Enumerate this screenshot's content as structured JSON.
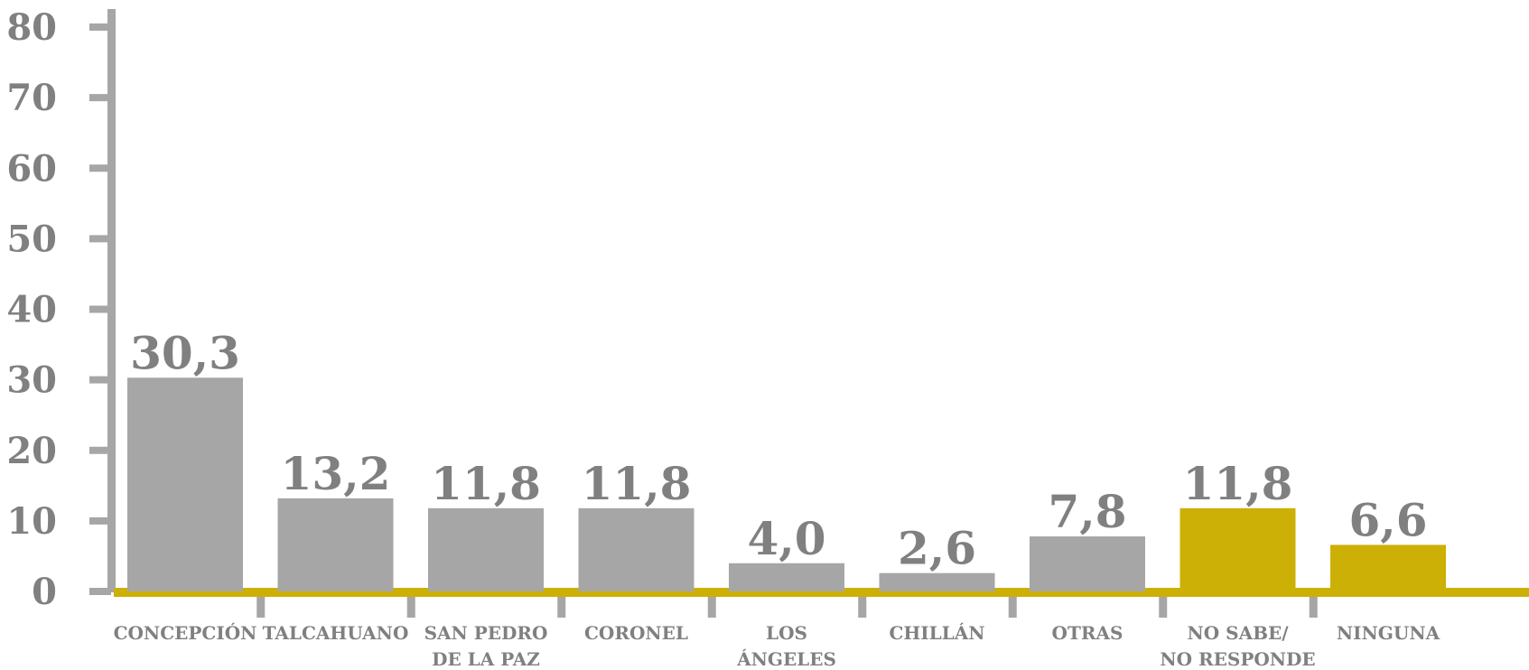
{
  "chart_data": {
    "type": "bar",
    "categories": [
      [
        "CONCEPCIÓN"
      ],
      [
        "TALCAHUANO"
      ],
      [
        "SAN PEDRO",
        "DE LA PAZ"
      ],
      [
        "CORONEL"
      ],
      [
        "LOS",
        "ÁNGELES"
      ],
      [
        "CHILLÁN"
      ],
      [
        "OTRAS"
      ],
      [
        "NO SABE/",
        "NO RESPONDE"
      ],
      [
        "NINGUNA"
      ]
    ],
    "values": [
      30.3,
      13.2,
      11.8,
      11.8,
      4.0,
      2.6,
      7.8,
      11.8,
      6.6
    ],
    "value_labels": [
      "30,3",
      "13,2",
      "11,8",
      "11,8",
      "4,0",
      "2,6",
      "7,8",
      "11,8",
      "6,6"
    ],
    "highlighted": [
      false,
      false,
      false,
      false,
      false,
      false,
      false,
      true,
      true
    ],
    "yticks": [
      0,
      10,
      20,
      30,
      40,
      50,
      60,
      70,
      80
    ],
    "ylim": [
      0,
      80
    ],
    "grid": false,
    "title": "",
    "xlabel": "",
    "ylabel": "",
    "colors": {
      "bar": "#a6a6a6",
      "highlight": "#cdb005",
      "axis": "#a6a6a6",
      "baseline": "#cdb005",
      "text": "#808080"
    }
  }
}
